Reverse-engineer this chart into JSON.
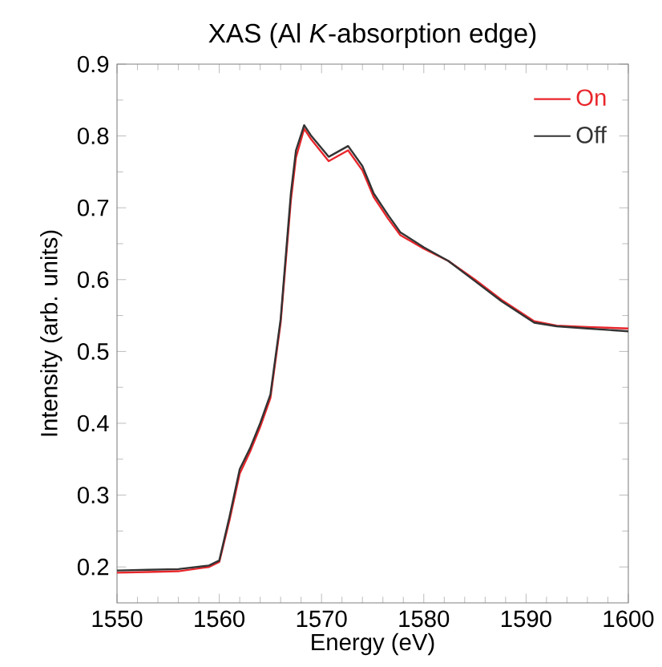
{
  "chart_data": {
    "type": "line",
    "title": "XAS  (Al *K*-absorption edge)",
    "xlabel": "Energy (eV)",
    "ylabel": "Intensity (arb. units)",
    "xlim": [
      1550,
      1600
    ],
    "ylim": [
      0.15,
      0.9
    ],
    "xticks": [
      1550,
      1560,
      1570,
      1580,
      1590,
      1600
    ],
    "yticks": [
      0.2,
      0.3,
      0.4,
      0.5,
      0.6,
      0.7,
      0.8,
      0.9
    ],
    "legend": "top right",
    "grid": false,
    "marker": "none",
    "line_style": "solid",
    "series": [
      {
        "name": "On",
        "color": "#e8262b",
        "x": [
          1550,
          1553,
          1556,
          1559,
          1560,
          1561,
          1562,
          1563,
          1564,
          1565,
          1566,
          1567,
          1567.5,
          1568.3,
          1569,
          1570.7,
          1572.6,
          1574,
          1575.1,
          1576.5,
          1577.7,
          1580,
          1582.4,
          1585,
          1587.6,
          1590.8,
          1593,
          1596,
          1600
        ],
        "values": [
          0.192,
          0.193,
          0.194,
          0.2,
          0.207,
          0.265,
          0.33,
          0.36,
          0.395,
          0.435,
          0.54,
          0.71,
          0.77,
          0.81,
          0.795,
          0.765,
          0.78,
          0.752,
          0.715,
          0.685,
          0.662,
          0.643,
          0.626,
          0.6,
          0.572,
          0.542,
          0.536,
          0.534,
          0.532
        ]
      },
      {
        "name": "Off",
        "color": "#333333",
        "x": [
          1550,
          1553,
          1556,
          1559,
          1560,
          1561,
          1562,
          1563,
          1564,
          1565,
          1566,
          1567,
          1567.5,
          1568.3,
          1569,
          1570.7,
          1572.6,
          1574,
          1575.1,
          1576.5,
          1577.7,
          1580,
          1582.4,
          1585,
          1587.6,
          1590.8,
          1593,
          1596,
          1600
        ],
        "values": [
          0.195,
          0.196,
          0.197,
          0.202,
          0.209,
          0.27,
          0.336,
          0.365,
          0.4,
          0.44,
          0.545,
          0.72,
          0.78,
          0.815,
          0.8,
          0.771,
          0.786,
          0.758,
          0.72,
          0.69,
          0.666,
          0.645,
          0.626,
          0.598,
          0.57,
          0.54,
          0.535,
          0.532,
          0.528
        ]
      }
    ]
  }
}
